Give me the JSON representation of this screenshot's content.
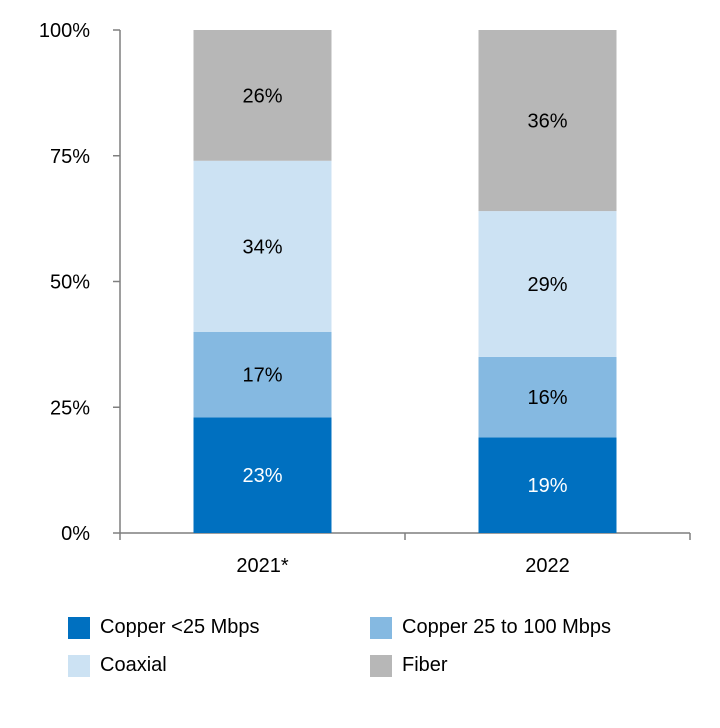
{
  "chart_data": {
    "type": "bar",
    "stacked": true,
    "percent": true,
    "categories": [
      "2021*",
      "2022"
    ],
    "series": [
      {
        "name": "Copper <25 Mbps",
        "color": "#0070C0",
        "label_color": "#ffffff",
        "values": [
          23,
          19
        ],
        "labels": [
          "23%",
          "19%"
        ]
      },
      {
        "name": "Copper 25 to 100 Mbps",
        "color": "#85B9E1",
        "label_color": "#000000",
        "values": [
          17,
          16
        ],
        "labels": [
          "17%",
          "16%"
        ]
      },
      {
        "name": "Coaxial",
        "color": "#CCE2F3",
        "label_color": "#000000",
        "values": [
          34,
          29
        ],
        "labels": [
          "34%",
          "29%"
        ]
      },
      {
        "name": "Fiber",
        "color": "#B7B7B7",
        "label_color": "#000000",
        "values": [
          26,
          36
        ],
        "labels": [
          "26%",
          "36%"
        ]
      }
    ],
    "ylim": [
      0,
      100
    ],
    "yticks": [
      "0%",
      "25%",
      "50%",
      "75%",
      "100%"
    ],
    "grid": false,
    "legend_position": "bottom"
  }
}
